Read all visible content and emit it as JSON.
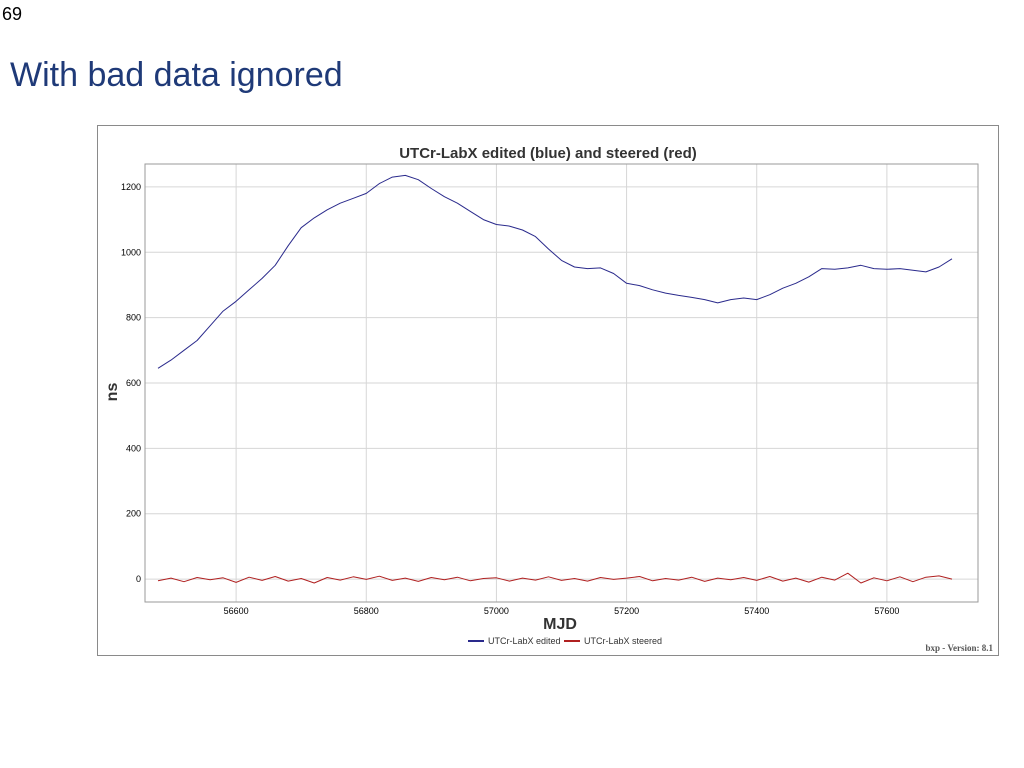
{
  "slide": {
    "number": "69",
    "title": "With bad data ignored"
  },
  "colors": {
    "title": "#1f3a78",
    "series_edited": "#2a2a8c",
    "series_steered": "#b02020",
    "grid": "#d6d6d6"
  },
  "chart_data": {
    "type": "line",
    "title": "UTCr-LabX edited (blue) and steered (red)",
    "xlabel": "MJD",
    "ylabel": "ns",
    "xlim": [
      56460,
      57740
    ],
    "ylim": [
      -70,
      1270
    ],
    "xticks": [
      56600,
      56800,
      57000,
      57200,
      57400,
      57600
    ],
    "yticks": [
      0,
      200,
      400,
      600,
      800,
      1000,
      1200
    ],
    "grid": true,
    "legend_position": "bottom-center",
    "footer": "bxp - Version: 8.1",
    "series": [
      {
        "name": "UTCr-LabX edited",
        "color": "#2a2a8c",
        "x": [
          56480,
          56500,
          56520,
          56540,
          56560,
          56580,
          56600,
          56620,
          56640,
          56660,
          56680,
          56700,
          56720,
          56740,
          56760,
          56780,
          56800,
          56820,
          56840,
          56860,
          56880,
          56900,
          56920,
          56940,
          56960,
          56980,
          57000,
          57020,
          57040,
          57060,
          57080,
          57100,
          57120,
          57140,
          57160,
          57180,
          57200,
          57220,
          57240,
          57260,
          57280,
          57300,
          57320,
          57340,
          57360,
          57380,
          57400,
          57420,
          57440,
          57460,
          57480,
          57500,
          57520,
          57540,
          57560,
          57580,
          57600,
          57620,
          57640,
          57660,
          57680,
          57700
        ],
        "y": [
          645,
          670,
          700,
          730,
          775,
          820,
          850,
          885,
          920,
          960,
          1020,
          1075,
          1105,
          1130,
          1150,
          1165,
          1180,
          1210,
          1230,
          1235,
          1222,
          1195,
          1170,
          1150,
          1125,
          1100,
          1085,
          1080,
          1068,
          1048,
          1010,
          975,
          955,
          950,
          952,
          935,
          905,
          898,
          885,
          875,
          868,
          862,
          855,
          845,
          855,
          860,
          855,
          870,
          890,
          905,
          925,
          950,
          948,
          952,
          960,
          950,
          948,
          950,
          945,
          940,
          955,
          980
        ]
      },
      {
        "name": "UTCr-LabX steered",
        "color": "#b02020",
        "x": [
          56480,
          56500,
          56520,
          56540,
          56560,
          56580,
          56600,
          56620,
          56640,
          56660,
          56680,
          56700,
          56720,
          56740,
          56760,
          56780,
          56800,
          56820,
          56840,
          56860,
          56880,
          56900,
          56920,
          56940,
          56960,
          56980,
          57000,
          57020,
          57040,
          57060,
          57080,
          57100,
          57120,
          57140,
          57160,
          57180,
          57200,
          57220,
          57240,
          57260,
          57280,
          57300,
          57320,
          57340,
          57360,
          57380,
          57400,
          57420,
          57440,
          57460,
          57480,
          57500,
          57520,
          57540,
          57560,
          57580,
          57600,
          57620,
          57640,
          57660,
          57680,
          57700
        ],
        "y": [
          -5,
          3,
          -8,
          5,
          -2,
          4,
          -10,
          6,
          -4,
          8,
          -6,
          2,
          -12,
          5,
          -3,
          7,
          -1,
          9,
          -4,
          3,
          -7,
          5,
          -2,
          6,
          -5,
          2,
          4,
          -6,
          3,
          -3,
          7,
          -4,
          2,
          -6,
          5,
          -1,
          3,
          8,
          -5,
          2,
          -3,
          6,
          -7,
          3,
          -2,
          5,
          -4,
          8,
          -6,
          3,
          -9,
          6,
          -3,
          18,
          -12,
          4,
          -5,
          7,
          -8,
          6,
          10,
          0
        ]
      }
    ]
  }
}
